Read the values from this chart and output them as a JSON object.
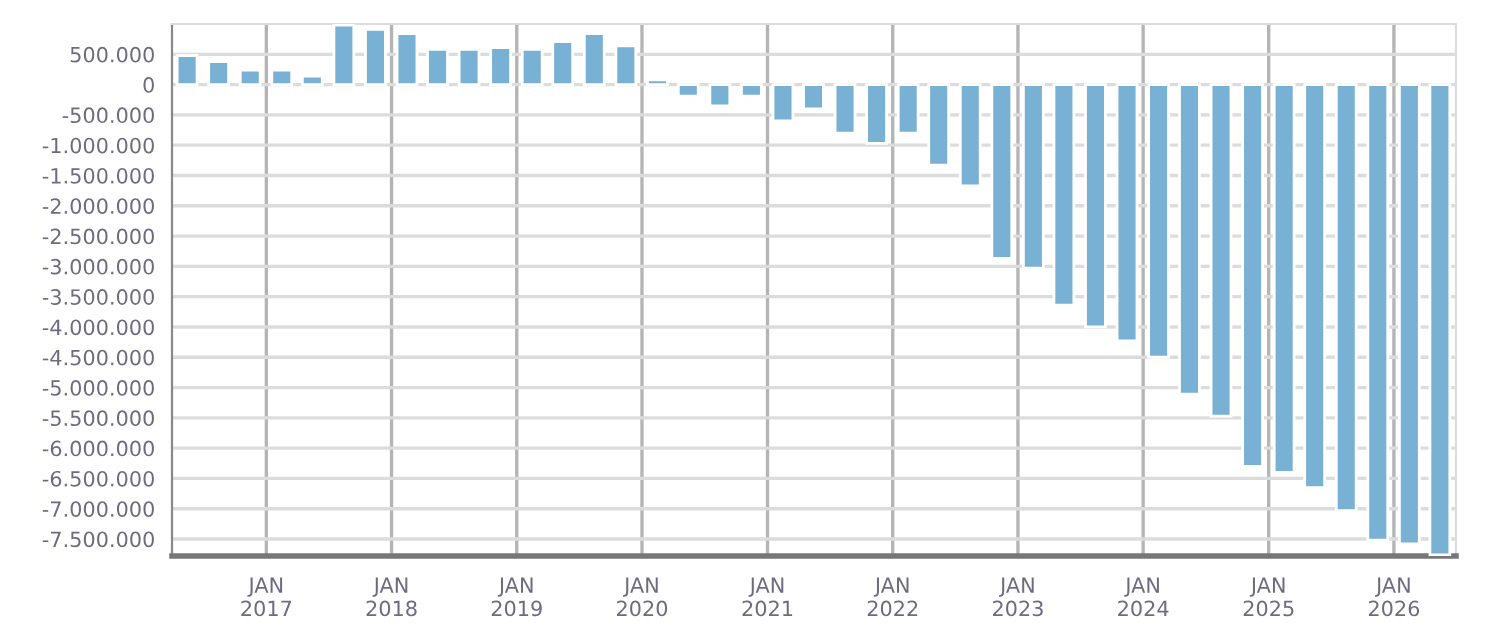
{
  "chart_data": {
    "type": "bar",
    "x": [
      "2016-05-15",
      "2016-08-15",
      "2016-11-15",
      "2017-02-15",
      "2017-05-15",
      "2017-08-15",
      "2017-11-15",
      "2018-02-15",
      "2018-05-15",
      "2018-08-15",
      "2018-11-15",
      "2019-02-15",
      "2019-05-15",
      "2019-08-15",
      "2019-11-15",
      "2020-02-15",
      "2020-05-15",
      "2020-08-15",
      "2020-11-15",
      "2021-02-15",
      "2021-05-15",
      "2021-08-15",
      "2021-11-15",
      "2022-02-15",
      "2022-05-15",
      "2022-08-15",
      "2022-11-15",
      "2023-02-15",
      "2023-05-15",
      "2023-08-15",
      "2023-11-15",
      "2024-02-15",
      "2024-05-15",
      "2024-08-15",
      "2024-11-15",
      "2025-02-15",
      "2025-05-15",
      "2025-08-15",
      "2025-11-15",
      "2026-02-15",
      "2026-05-15"
    ],
    "values": [
      480000,
      380000,
      240000,
      240000,
      140000,
      980000,
      910000,
      840000,
      580000,
      580000,
      610000,
      580000,
      710000,
      840000,
      640000,
      80000,
      -190000,
      -350000,
      -190000,
      -600000,
      -400000,
      -800000,
      -970000,
      -800000,
      -1330000,
      -1670000,
      -2870000,
      -3030000,
      -3640000,
      -4000000,
      -4230000,
      -4500000,
      -5110000,
      -5470000,
      -6300000,
      -6400000,
      -6650000,
      -7030000,
      -7520000,
      -7580000,
      -7760000
    ],
    "color": "#78b1d3",
    "xlim": [
      "2016-04-01",
      "2026-07-01"
    ],
    "xticks": [
      {
        "value": "2017-01-01",
        "label": "JAN\n2017"
      },
      {
        "value": "2018-01-01",
        "label": "JAN\n2018"
      },
      {
        "value": "2019-01-01",
        "label": "JAN\n2019"
      },
      {
        "value": "2020-01-01",
        "label": "JAN\n2020"
      },
      {
        "value": "2021-01-01",
        "label": "JAN\n2021"
      },
      {
        "value": "2022-01-01",
        "label": "JAN\n2022"
      },
      {
        "value": "2023-01-01",
        "label": "JAN\n2023"
      },
      {
        "value": "2024-01-01",
        "label": "JAN\n2024"
      },
      {
        "value": "2025-01-01",
        "label": "JAN\n2025"
      },
      {
        "value": "2026-01-01",
        "label": "JAN\n2026"
      }
    ],
    "ylim": [
      -7780000,
      1000000
    ],
    "yticks": [
      {
        "value": 500000,
        "label": "500.000"
      },
      0,
      {
        "value": -500000,
        "label": "-500.000"
      },
      {
        "value": -1000000,
        "label": "-1.000.000"
      },
      {
        "value": -1500000,
        "label": "-1.500.000"
      },
      {
        "value": -2000000,
        "label": "-2.000.000"
      },
      {
        "value": -2500000,
        "label": "-2.500.000"
      },
      {
        "value": -3000000,
        "label": "-3.000.000"
      },
      {
        "value": -3500000,
        "label": "-3.500.000"
      },
      {
        "value": -4000000,
        "label": "-4.000.000"
      },
      {
        "value": -4500000,
        "label": "-4.500.000"
      },
      {
        "value": -5000000,
        "label": "-5.000.000"
      },
      {
        "value": -5500000,
        "label": "-5.500.000"
      },
      {
        "value": -6000000,
        "label": "-6.000.000"
      },
      {
        "value": -6500000,
        "label": "-6.500.000"
      },
      {
        "value": -7000000,
        "label": "-7.000.000"
      },
      {
        "value": -7500000,
        "label": "-7.500.000"
      }
    ],
    "grid": true
  }
}
